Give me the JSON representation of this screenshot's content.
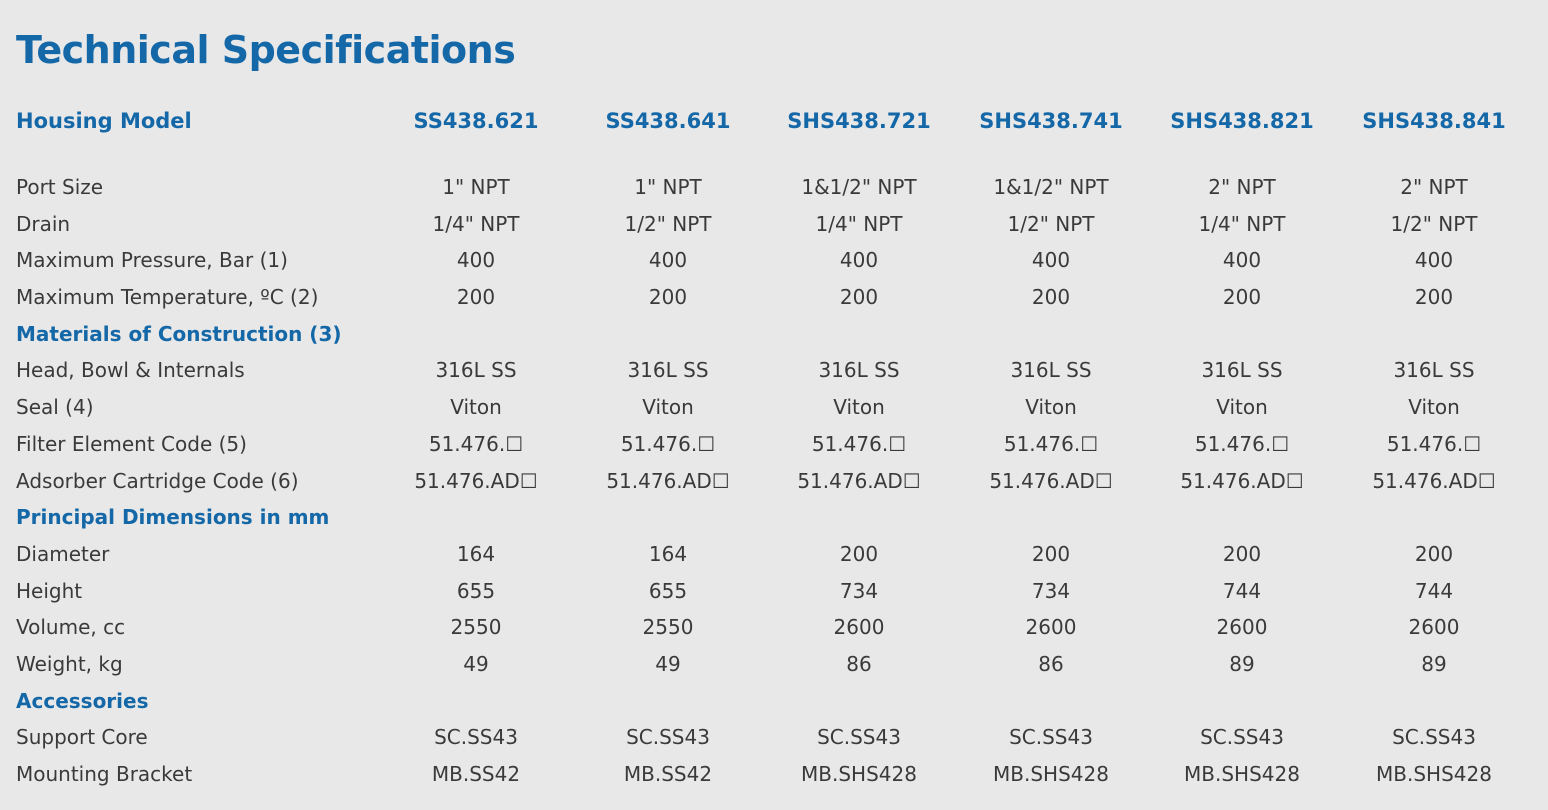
{
  "title": "Technical Specifications",
  "header": {
    "label": "Housing Model",
    "models": [
      "SS438.621",
      "SS438.641",
      "SHS438.721",
      "SHS438.741",
      "SHS438.821",
      "SHS438.841"
    ]
  },
  "rows": [
    {
      "label": "Port Size",
      "values": [
        "1\" NPT",
        "1\" NPT",
        "1&1/2\" NPT",
        "1&1/2\" NPT",
        "2\" NPT",
        "2\" NPT"
      ]
    },
    {
      "label": "Drain",
      "values": [
        "1/4\" NPT",
        "1/2\" NPT",
        "1/4\" NPT",
        "1/2\" NPT",
        "1/4\" NPT",
        "1/2\" NPT"
      ]
    },
    {
      "label": "Maximum Pressure, Bar (1)",
      "values": [
        "400",
        "400",
        "400",
        "400",
        "400",
        "400"
      ]
    },
    {
      "label": "Maximum Temperature, ºC (2)",
      "values": [
        "200",
        "200",
        "200",
        "200",
        "200",
        "200"
      ]
    },
    {
      "label": "Materials of Construction (3)",
      "section": true
    },
    {
      "label": "Head, Bowl & Internals",
      "values": [
        "316L SS",
        "316L SS",
        "316L SS",
        "316L SS",
        "316L SS",
        "316L SS"
      ]
    },
    {
      "label": "Seal (4)",
      "values": [
        "Viton",
        "Viton",
        "Viton",
        "Viton",
        "Viton",
        "Viton"
      ]
    },
    {
      "label": "Filter Element Code (5)",
      "values": [
        "51.476.☐",
        "51.476.☐",
        "51.476.☐",
        "51.476.☐",
        "51.476.☐",
        "51.476.☐"
      ]
    },
    {
      "label": "Adsorber Cartridge Code (6)",
      "values": [
        "51.476.AD☐",
        "51.476.AD☐",
        "51.476.AD☐",
        "51.476.AD☐",
        "51.476.AD☐",
        "51.476.AD☐"
      ]
    },
    {
      "label": "Principal Dimensions in mm",
      "section": true
    },
    {
      "label": "Diameter",
      "values": [
        "164",
        "164",
        "200",
        "200",
        "200",
        "200"
      ]
    },
    {
      "label": "Height",
      "values": [
        "655",
        "655",
        "734",
        "734",
        "744",
        "744"
      ]
    },
    {
      "label": "Volume, cc",
      "values": [
        "2550",
        "2550",
        "2600",
        "2600",
        "2600",
        "2600"
      ]
    },
    {
      "label": "Weight, kg",
      "values": [
        "49",
        "49",
        "86",
        "86",
        "89",
        "89"
      ]
    },
    {
      "label": "Accessories",
      "section": true
    },
    {
      "label": "Support Core",
      "values": [
        "SC.SS43",
        "SC.SS43",
        "SC.SS43",
        "SC.SS43",
        "SC.SS43",
        "SC.SS43"
      ]
    },
    {
      "label": "Mounting Bracket",
      "values": [
        "MB.SS42",
        "MB.SS42",
        "MB.SHS428",
        "MB.SHS428",
        "MB.SHS428",
        "MB.SHS428"
      ]
    }
  ]
}
